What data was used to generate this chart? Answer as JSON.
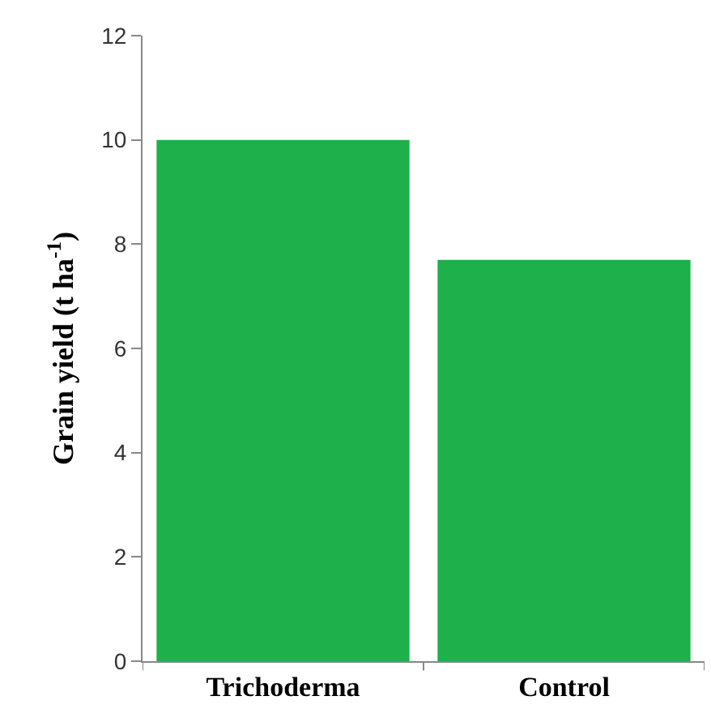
{
  "chart_data": {
    "type": "bar",
    "ylabel": "Grain yield (t ha$^{-1}$)",
    "categories": [
      "Trichoderma",
      "Control"
    ],
    "values": [
      10.0,
      7.7
    ],
    "color": "#1db04b",
    "ylim": [
      0,
      12
    ],
    "yticks": [
      0,
      2,
      4,
      6,
      8,
      10,
      12
    ]
  }
}
